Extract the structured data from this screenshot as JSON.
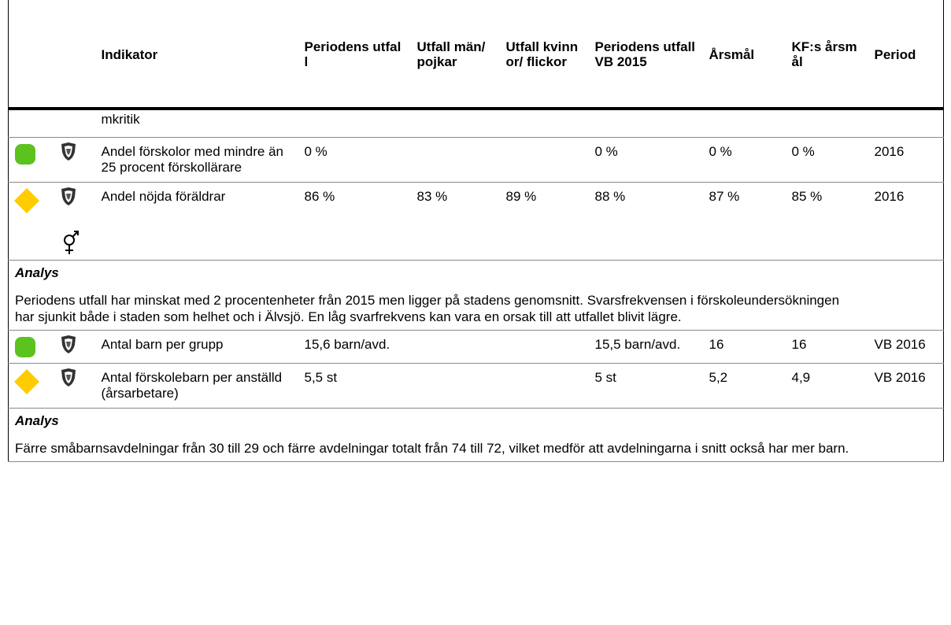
{
  "table": {
    "columns": [
      "Indikator",
      "Periodens utfall",
      "Utfall män/ pojkar",
      "Utfall kvinnor/ flickor",
      "Periodens utfall VB 2015",
      "Årsmål",
      "KF:s årsmål",
      "Period"
    ],
    "rows": [
      {
        "kind": "continuation",
        "name": "mkritik"
      },
      {
        "kind": "indicator",
        "status": "green",
        "name": "Andel förskolor med mindre än 25 procent förskollärare",
        "cells": [
          "0 %",
          null,
          null,
          "0 %",
          "0 %",
          "0 %",
          "2016"
        ]
      },
      {
        "kind": "indicator",
        "status": "yellow",
        "gender": true,
        "name": "Andel nöjda föräldrar",
        "cells": [
          "86 %",
          "83 %",
          "89 %",
          "88 %",
          "87 %",
          "85 %",
          "2016"
        ]
      },
      {
        "kind": "analysis",
        "title": "Analys",
        "text": "Periodens utfall har minskat med 2 procentenheter från 2015 men ligger på stadens genomsnitt. Svarsfrekvensen i förskoleundersökningen har sjunkit både i staden som helhet och i Älvsjö. En låg svarfrekvens kan vara en orsak till att utfallet blivit lägre."
      },
      {
        "kind": "indicator",
        "status": "green",
        "name": "Antal barn per grupp",
        "cells": [
          "15,6 barn/avd.",
          null,
          null,
          "15,5 barn/avd.",
          "16",
          "16",
          "VB 2016"
        ]
      },
      {
        "kind": "indicator",
        "status": "yellow",
        "name": "Antal förskolebarn per anställd (årsarbetare)",
        "cells": [
          "5,5 st",
          null,
          null,
          "5 st",
          "5,2",
          "4,9",
          "VB 2016"
        ]
      },
      {
        "kind": "analysis",
        "title": "Analys",
        "text": "Färre småbarnsavdelningar från 30 till 29 och färre avdelningar totalt från 74 till 72, vilket medför att avdelningarna i snitt också har mer barn."
      }
    ]
  }
}
